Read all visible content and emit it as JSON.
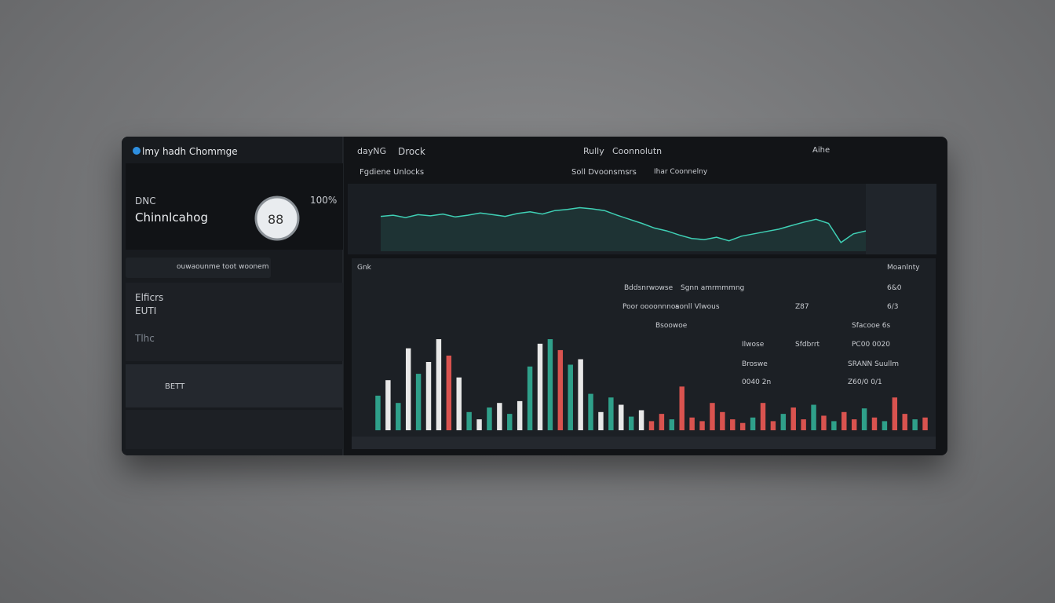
{
  "sidebar": {
    "title": "lmy hadh Chommge",
    "ticker": "DNC",
    "name": "Chinnlcahog",
    "percent": "100%",
    "gauge": "88",
    "search": "ouwaounme toot woonem",
    "items": [
      "Elficrs",
      "EUTI",
      "Tlhc",
      "BETT"
    ]
  },
  "header": {
    "tabs": [
      "dayNG",
      "Drock",
      "Rully",
      "Coonnolutn",
      "Aihe"
    ],
    "subtabs": [
      "Fgdiene Unlocks",
      "Soll Dvoonsmsrs",
      "Ihar Coonnelny"
    ]
  },
  "table": {
    "header": [
      "Gnk",
      "Moanlnty"
    ],
    "rows": [
      [
        "Bddsnrwowse",
        "Sgnn amrmmmng",
        "6&0"
      ],
      [
        "Poor oooonnnos",
        "aonll Vlwous",
        "Z87",
        "6/3"
      ],
      [
        "Bsoowoe",
        "Sfacooe 6s"
      ],
      [
        "Ilwose",
        "Sfdbrrt",
        "PC00 0020"
      ],
      [
        "Broswe",
        "SRANN Suullm"
      ],
      [
        "0040 2n",
        "Z60/0 0/1"
      ]
    ]
  },
  "price_chart": {
    "ylim": [
      0,
      100
    ],
    "color": "#3fd0b5",
    "values": [
      60,
      62,
      58,
      63,
      61,
      64,
      59,
      62,
      66,
      63,
      60,
      65,
      68,
      64,
      70,
      72,
      75,
      73,
      70,
      62,
      55,
      48,
      40,
      35,
      28,
      22,
      20,
      24,
      18,
      26,
      30,
      34,
      38,
      44,
      50,
      55,
      48,
      15,
      30,
      35
    ]
  },
  "volume_chart": {
    "ylim": [
      0,
      100
    ],
    "bars": [
      {
        "value": 38,
        "color": "#2fa08a"
      },
      {
        "value": 55,
        "color": "#e8e8e8"
      },
      {
        "value": 30,
        "color": "#2fa08a"
      },
      {
        "value": 90,
        "color": "#e8e8e8"
      },
      {
        "value": 62,
        "color": "#2fa08a"
      },
      {
        "value": 75,
        "color": "#e8e8e8"
      },
      {
        "value": 100,
        "color": "#e8e8e8"
      },
      {
        "value": 82,
        "color": "#d9534f"
      },
      {
        "value": 58,
        "color": "#e8e8e8"
      },
      {
        "value": 20,
        "color": "#2fa08a"
      },
      {
        "value": 12,
        "color": "#e8e8e8"
      },
      {
        "value": 25,
        "color": "#2fa08a"
      },
      {
        "value": 30,
        "color": "#e8e8e8"
      },
      {
        "value": 18,
        "color": "#2fa08a"
      },
      {
        "value": 32,
        "color": "#e8e8e8"
      },
      {
        "value": 70,
        "color": "#2fa08a"
      },
      {
        "value": 95,
        "color": "#e8e8e8"
      },
      {
        "value": 100,
        "color": "#2fa08a"
      },
      {
        "value": 88,
        "color": "#d9534f"
      },
      {
        "value": 72,
        "color": "#2fa08a"
      },
      {
        "value": 78,
        "color": "#e8e8e8"
      },
      {
        "value": 40,
        "color": "#2fa08a"
      },
      {
        "value": 20,
        "color": "#e8e8e8"
      },
      {
        "value": 36,
        "color": "#2fa08a"
      },
      {
        "value": 28,
        "color": "#e8e8e8"
      },
      {
        "value": 15,
        "color": "#2fa08a"
      },
      {
        "value": 22,
        "color": "#e8e8e8"
      },
      {
        "value": 10,
        "color": "#d9534f"
      },
      {
        "value": 18,
        "color": "#d9534f"
      },
      {
        "value": 12,
        "color": "#2fa08a"
      },
      {
        "value": 48,
        "color": "#d9534f"
      },
      {
        "value": 14,
        "color": "#d9534f"
      },
      {
        "value": 10,
        "color": "#d9534f"
      },
      {
        "value": 30,
        "color": "#d9534f"
      },
      {
        "value": 20,
        "color": "#d9534f"
      },
      {
        "value": 12,
        "color": "#d9534f"
      },
      {
        "value": 8,
        "color": "#d9534f"
      },
      {
        "value": 14,
        "color": "#2fa08a"
      },
      {
        "value": 30,
        "color": "#d9534f"
      },
      {
        "value": 10,
        "color": "#d9534f"
      },
      {
        "value": 18,
        "color": "#2fa08a"
      },
      {
        "value": 25,
        "color": "#d9534f"
      },
      {
        "value": 12,
        "color": "#d9534f"
      },
      {
        "value": 28,
        "color": "#2fa08a"
      },
      {
        "value": 16,
        "color": "#d9534f"
      },
      {
        "value": 10,
        "color": "#2fa08a"
      },
      {
        "value": 20,
        "color": "#d9534f"
      },
      {
        "value": 12,
        "color": "#d9534f"
      },
      {
        "value": 24,
        "color": "#2fa08a"
      },
      {
        "value": 14,
        "color": "#d9534f"
      },
      {
        "value": 10,
        "color": "#2fa08a"
      },
      {
        "value": 36,
        "color": "#d9534f"
      },
      {
        "value": 18,
        "color": "#d9534f"
      },
      {
        "value": 12,
        "color": "#2fa08a"
      },
      {
        "value": 14,
        "color": "#d9534f"
      }
    ]
  }
}
